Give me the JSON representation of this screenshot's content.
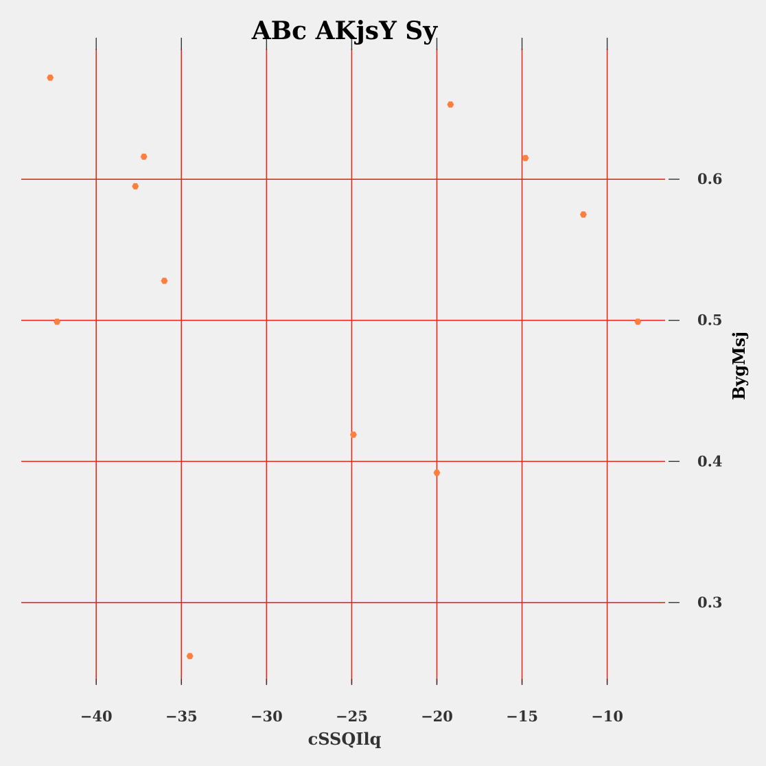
{
  "chart_data": {
    "type": "scatter",
    "title": "ABc AKjsY Sy",
    "xlabel": "cSSQIlq",
    "ylabel": "BygMsj",
    "xlim": [
      -44.4,
      -6.6
    ],
    "ylim": [
      0.2425,
      0.6925
    ],
    "x_ticks": [
      -40,
      -35,
      -30,
      -25,
      -20,
      -15,
      -10
    ],
    "x_tick_labels": [
      "−40",
      "−35",
      "−30",
      "−25",
      "−20",
      "−15",
      "−10"
    ],
    "y_ticks": [
      0.3,
      0.4,
      0.5,
      0.6
    ],
    "y_tick_labels": [
      "0.3",
      "0.4",
      "0.5",
      "0.6"
    ],
    "y_axis_position": "right",
    "x_ticks_top": true,
    "grid": true,
    "grid_color": "#e8291c",
    "marker_color": "#ff7f3f",
    "background": "#f0f0f0",
    "points": [
      {
        "x": -42.7,
        "y": 0.672
      },
      {
        "x": -42.3,
        "y": 0.499
      },
      {
        "x": -37.2,
        "y": 0.616
      },
      {
        "x": -37.7,
        "y": 0.595
      },
      {
        "x": -36.0,
        "y": 0.528
      },
      {
        "x": -34.5,
        "y": 0.262
      },
      {
        "x": -24.9,
        "y": 0.419
      },
      {
        "x": -20.0,
        "y": 0.392
      },
      {
        "x": -19.2,
        "y": 0.653
      },
      {
        "x": -14.8,
        "y": 0.615
      },
      {
        "x": -11.4,
        "y": 0.575
      },
      {
        "x": -8.2,
        "y": 0.499
      }
    ]
  }
}
